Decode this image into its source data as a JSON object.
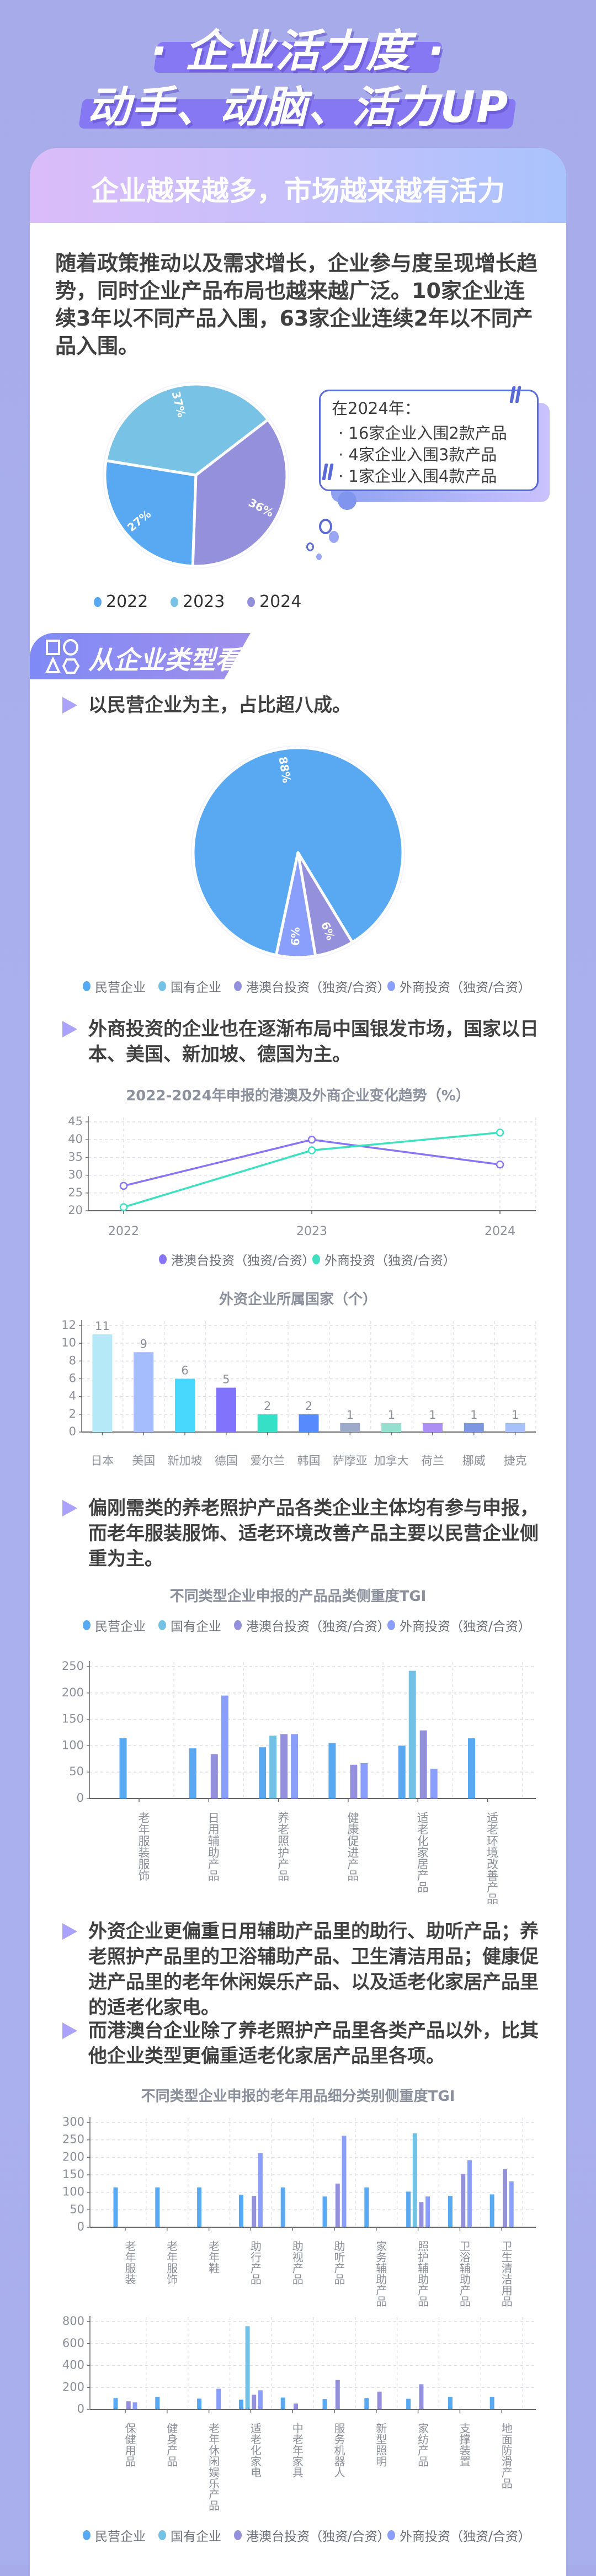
{
  "header": {
    "title_line1": "· 企业活力度 ·",
    "title_line2": "动手、动脑、活力UP"
  },
  "card": {
    "heading": "企业越来越多，市场越来越有活力",
    "intro": "随着政策推动以及需求增长，企业参与度呈现增长趋势，同时企业产品布局也越来越广泛。10家企业连续3年以不同产品入围，63家企业连续2年以不同产品入围。"
  },
  "callout": {
    "title": "在2024年：",
    "items": [
      "· 16家企业入围2款产品",
      "· 4家企业入围3款产品",
      "· 1家企业入围4款产品"
    ]
  },
  "section": {
    "title": "从企业类型看:"
  },
  "bullets": [
    "以民营企业为主，占比超八成。",
    "外商投资的企业也在逐渐布局中国银发市场，国家以日本、美国、新加坡、德国为主。",
    "偏刚需类的养老照护产品各类企业主体均有参与申报，而老年服装服饰、适老环境改善产品主要以民营企业侧重为主。",
    "外资企业更偏重日用辅助产品里的助行、助听产品；养老照护产品里的卫浴辅助产品、卫生清洁用品；健康促进产品里的老年休闲娱乐产品、以及适老化家居产品里的适老化家电。",
    "而港澳台企业除了养老照护产品里各类产品以外，比其他企业类型更偏重适老化家居产品里各项。"
  ],
  "colors": {
    "private": "#58a9f2",
    "state": "#74c1e6",
    "hmt": "#9490dc",
    "foreign": "#8a9ffc",
    "accent": "#8677f2"
  },
  "chart_data": [
    {
      "id": "yearly-pie",
      "type": "pie",
      "labels": [
        "2022",
        "2023",
        "2024"
      ],
      "values": [
        27,
        37,
        36
      ],
      "value_labels": [
        "27%",
        "37%",
        "36%"
      ],
      "colors": [
        "#58a9f2",
        "#78c2e6",
        "#9490dc"
      ],
      "legend": "bottom"
    },
    {
      "id": "type-pie",
      "type": "pie",
      "labels": [
        "民营企业",
        "国有企业",
        "港澳台投资（独资/合资）",
        "外商投资（独资/合资）"
      ],
      "values": [
        88,
        0,
        6,
        6
      ],
      "value_labels": [
        "88%",
        "",
        "6%",
        "6%"
      ],
      "colors": [
        "#58a9f2",
        "#74c1e6",
        "#9490dc",
        "#8a9ffc"
      ],
      "legend": "bottom"
    },
    {
      "id": "trend-line",
      "type": "line",
      "title": "2022-2024年申报的港澳及外商企业变化趋势（%）",
      "x": [
        "2022",
        "2023",
        "2024"
      ],
      "series": [
        {
          "name": "港澳台投资（独资/合资）",
          "values": [
            27,
            40,
            33
          ],
          "color": "#8775f5"
        },
        {
          "name": "外商投资（独资/合资）",
          "values": [
            21,
            37,
            42
          ],
          "color": "#3ee0c0"
        }
      ],
      "ylim": [
        20,
        45
      ],
      "yticks": [
        20,
        25,
        30,
        35,
        40,
        45
      ],
      "grid": true,
      "legend": "bottom"
    },
    {
      "id": "country-bar",
      "type": "bar",
      "title": "外资企业所属国家（个）",
      "categories": [
        "日本",
        "美国",
        "新加坡",
        "德国",
        "爱尔兰",
        "韩国",
        "萨摩亚",
        "加拿大",
        "荷兰",
        "挪威",
        "捷克"
      ],
      "values": [
        11,
        9,
        6,
        5,
        2,
        2,
        1,
        1,
        1,
        1,
        1
      ],
      "colors": [
        "#b5e9f7",
        "#a5bcfd",
        "#48d8fe",
        "#8173fc",
        "#35e0c6",
        "#578afc",
        "#9eaac9",
        "#95dfce",
        "#ac8ff2",
        "#7b98e0",
        "#a7c1fd"
      ],
      "ylim": [
        0,
        12
      ],
      "yticks": [
        0,
        2,
        4,
        6,
        8,
        10,
        12
      ],
      "grid": true
    },
    {
      "id": "category-tgi",
      "type": "bar",
      "title": "不同类型企业申报的产品品类侧重度TGI",
      "categories": [
        "老年服装服饰",
        "日用辅助产品",
        "养老照护产品",
        "健康促进产品",
        "适老化家居产品",
        "适老环境改善产品"
      ],
      "series": [
        {
          "name": "民营企业",
          "values": [
            114,
            95,
            97,
            105,
            100,
            114
          ],
          "color": "#58a9f2"
        },
        {
          "name": "国有企业",
          "values": [
            0,
            0,
            119,
            0,
            242,
            0
          ],
          "color": "#74c1e6"
        },
        {
          "name": "港澳台投资（独资/合资）",
          "values": [
            0,
            84,
            122,
            64,
            129,
            0
          ],
          "color": "#9490dc"
        },
        {
          "name": "外商投资（独资/合资）",
          "values": [
            0,
            195,
            122,
            67,
            56,
            0
          ],
          "color": "#8a9ffc"
        }
      ],
      "ylim": [
        0,
        250
      ],
      "yticks": [
        0,
        50,
        100,
        150,
        200,
        250
      ],
      "grid": true,
      "legend": "top"
    },
    {
      "id": "subcategory-tgi-1",
      "type": "bar",
      "title": "不同类型企业申报的老年用品细分类别侧重度TGI",
      "categories": [
        "老年服装",
        "老年服饰",
        "老年鞋",
        "助行产品",
        "助视产品",
        "助听产品",
        "家务辅助产品",
        "照护辅助产品",
        "卫浴辅助产品",
        "卫生清洁用品"
      ],
      "series": [
        {
          "name": "民营企业",
          "values": [
            114,
            114,
            114,
            93,
            114,
            88,
            114,
            102,
            90,
            94
          ],
          "color": "#58a9f2"
        },
        {
          "name": "国有企业",
          "values": [
            0,
            0,
            0,
            0,
            0,
            0,
            0,
            269,
            0,
            0
          ],
          "color": "#74c1e6"
        },
        {
          "name": "港澳台投资（独资/合资）",
          "values": [
            0,
            0,
            0,
            90,
            0,
            125,
            0,
            72,
            153,
            166
          ],
          "color": "#9490dc"
        },
        {
          "name": "外商投资（独资/合资）",
          "values": [
            0,
            0,
            0,
            212,
            0,
            262,
            0,
            88,
            192,
            131
          ],
          "color": "#8a9ffc"
        }
      ],
      "ylim": [
        0,
        300
      ],
      "yticks": [
        0,
        50,
        100,
        150,
        200,
        250,
        300
      ],
      "grid": true
    },
    {
      "id": "subcategory-tgi-2",
      "type": "bar",
      "categories": [
        "保健用品",
        "健身产品",
        "老年休闲娱乐产品",
        "适老化家电",
        "中老年家具",
        "服务机器人",
        "新型照明",
        "家纺产品",
        "支撑装置",
        "地面防滑产品"
      ],
      "series": [
        {
          "name": "民营企业",
          "values": [
            103,
            112,
            98,
            88,
            108,
            95,
            101,
            97,
            112,
            112
          ],
          "color": "#58a9f2"
        },
        {
          "name": "国有企业",
          "values": [
            0,
            0,
            0,
            758,
            0,
            0,
            0,
            0,
            0,
            0
          ],
          "color": "#74c1e6"
        },
        {
          "name": "港澳台投资（独资/合资）",
          "values": [
            74,
            0,
            0,
            133,
            53,
            268,
            162,
            229,
            0,
            0
          ],
          "color": "#9490dc"
        },
        {
          "name": "外商投资（独资/合资）",
          "values": [
            64,
            0,
            188,
            174,
            0,
            0,
            0,
            0,
            0,
            0
          ],
          "color": "#8a9ffc"
        }
      ],
      "ylim": [
        0,
        800
      ],
      "yticks": [
        0,
        200,
        400,
        600,
        800
      ],
      "grid": true,
      "legend": "bottom"
    }
  ]
}
